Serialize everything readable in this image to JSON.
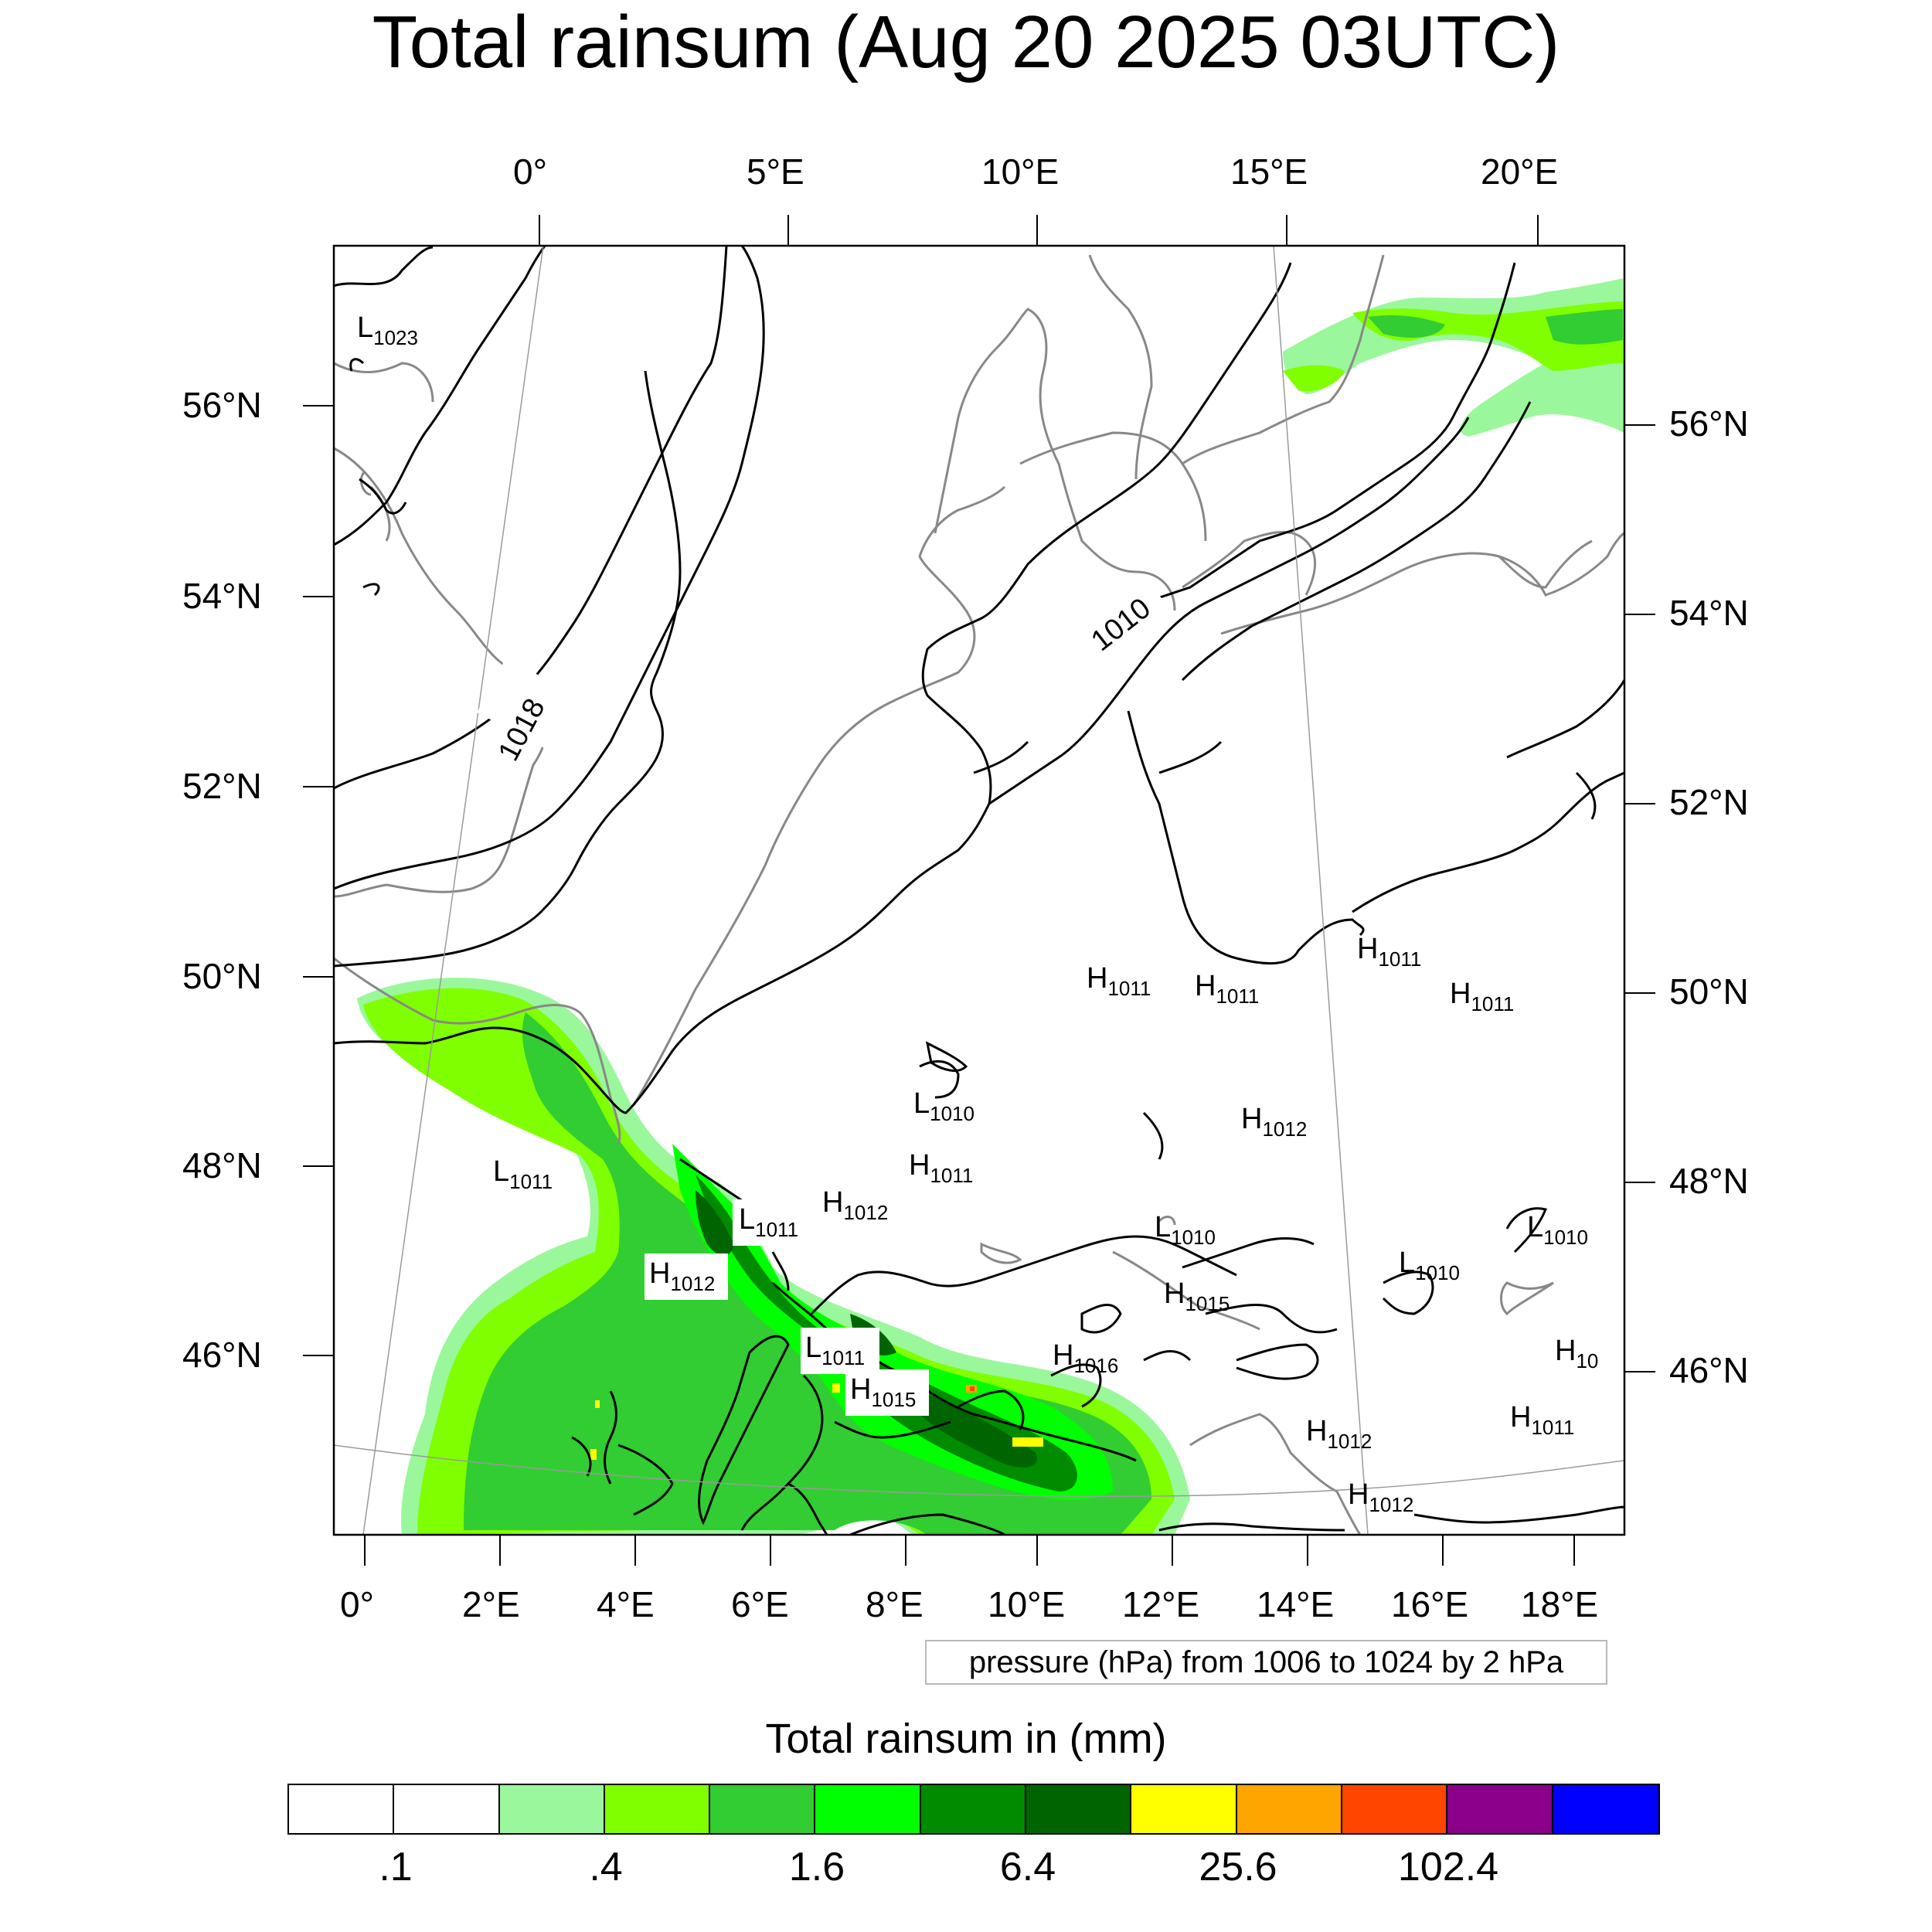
{
  "title": "Total rainsum (Aug 20 2025 03UTC)",
  "top_longitude_ticks": [
    "0°",
    "5°E",
    "10°E",
    "15°E",
    "20°E"
  ],
  "bottom_longitude_ticks": [
    "0°",
    "2°E",
    "4°E",
    "6°E",
    "8°E",
    "10°E",
    "12°E",
    "14°E",
    "16°E",
    "18°E"
  ],
  "left_latitude_ticks": [
    "56°N",
    "54°N",
    "52°N",
    "50°N",
    "48°N",
    "46°N"
  ],
  "right_latitude_ticks": [
    "56°N",
    "54°N",
    "52°N",
    "50°N",
    "48°N",
    "46°N"
  ],
  "contour_labels": [
    "1018",
    "1010"
  ],
  "pressure_centers": [
    {
      "type": "L",
      "value": "1023"
    },
    {
      "type": "H",
      "value": "1011"
    },
    {
      "type": "H",
      "value": "1011"
    },
    {
      "type": "H",
      "value": "1011"
    },
    {
      "type": "H",
      "value": "1011"
    },
    {
      "type": "L",
      "value": "1010"
    },
    {
      "type": "H",
      "value": "1012"
    },
    {
      "type": "H",
      "value": "1011"
    },
    {
      "type": "L",
      "value": "1011"
    },
    {
      "type": "L",
      "value": "1011"
    },
    {
      "type": "H",
      "value": "1012"
    },
    {
      "type": "H",
      "value": "1012"
    },
    {
      "type": "L",
      "value": "1010"
    },
    {
      "type": "L",
      "value": "1010"
    },
    {
      "type": "L",
      "value": "1010"
    },
    {
      "type": "H",
      "value": "1015"
    },
    {
      "type": "L",
      "value": "1011"
    },
    {
      "type": "H",
      "value": "1016"
    },
    {
      "type": "H",
      "value": "1015"
    },
    {
      "type": "H",
      "value": "10"
    },
    {
      "type": "H",
      "value": "1012"
    },
    {
      "type": "H",
      "value": "1011"
    },
    {
      "type": "H",
      "value": "1012"
    }
  ],
  "pressure_note": "pressure (hPa) from 1006 to 1024 by 2 hPa",
  "legend": {
    "title": "Total rainsum in (mm)",
    "colors": [
      "#ffffff",
      "#ffffff",
      "#9bf79b",
      "#80ff00",
      "#32cd32",
      "#00ff00",
      "#008b00",
      "#006400",
      "#ffff00",
      "#ffa500",
      "#ff4500",
      "#8b008b",
      "#0000ff"
    ],
    "labels": [
      ".1",
      ".4",
      "1.6",
      "6.4",
      "25.6",
      "102.4"
    ]
  }
}
